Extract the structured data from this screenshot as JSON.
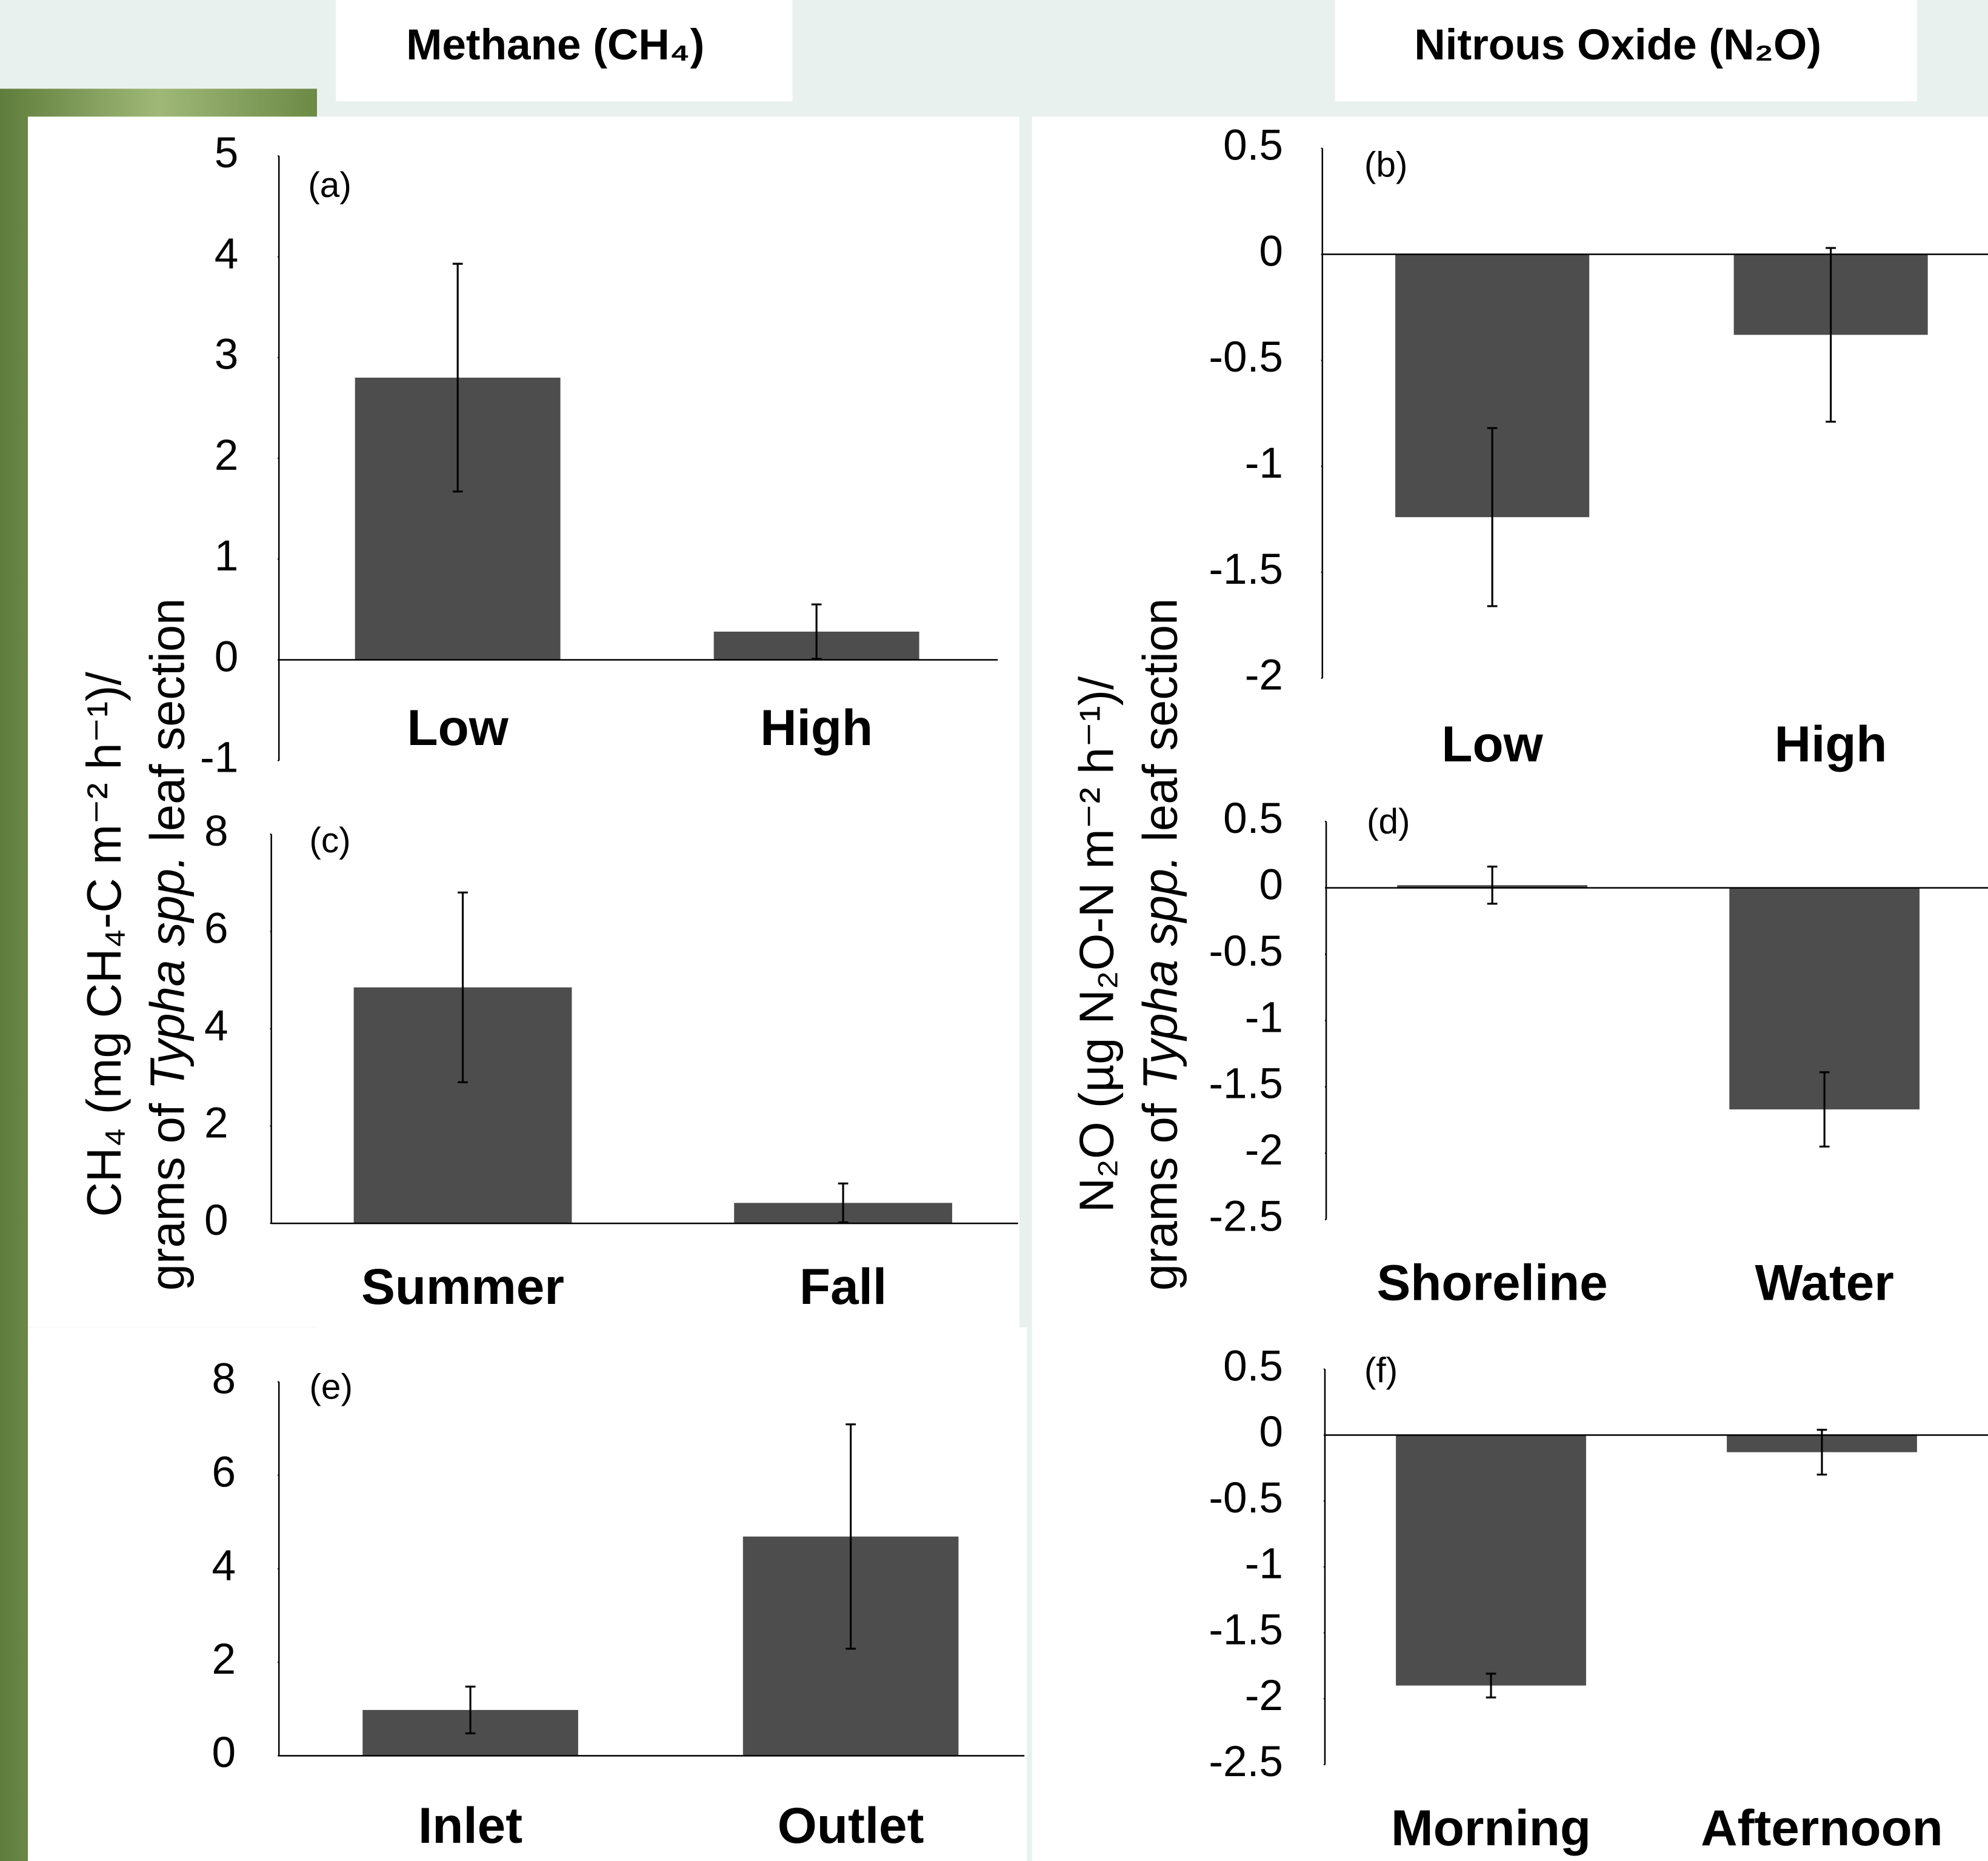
{
  "headers": [
    "Methane (CH₄)",
    "Nitrous Oxide (N₂O)"
  ],
  "y_labels": [
    {
      "line1": "CH₄ (mg CH₄-C m⁻² h⁻¹)/",
      "line2": [
        "grams of ",
        "Typha spp.",
        " leaf section"
      ]
    },
    {
      "line1": "N₂O (µg N₂O-N m⁻² h⁻¹)/",
      "line2": [
        "grams of ",
        "Typha spp.",
        " leaf section"
      ]
    }
  ],
  "chart_data": [
    {
      "type": "bar",
      "annotation": "(a)",
      "categories": [
        "Low",
        "High"
      ],
      "values": [
        2.8,
        0.28
      ],
      "errors": [
        1.13,
        0.27
      ],
      "color": "#4d4d4d",
      "ylim": [
        -1,
        5
      ],
      "yticks": [
        -1,
        0,
        1,
        2,
        3,
        4,
        5
      ]
    },
    {
      "type": "bar",
      "annotation": "(b)",
      "categories": [
        "Low",
        "High"
      ],
      "values": [
        -1.24,
        -0.38
      ],
      "errors": [
        0.42,
        0.41
      ],
      "color": "#4d4d4d",
      "ylim": [
        -2,
        0.5
      ],
      "yticks": [
        -2,
        -1.5,
        -1,
        -0.5,
        0,
        0.5
      ]
    },
    {
      "type": "bar",
      "annotation": "(c)",
      "categories": [
        "Summer",
        "Fall"
      ],
      "values": [
        4.85,
        0.42
      ],
      "errors": [
        1.95,
        0.4
      ],
      "color": "#4d4d4d",
      "ylim": [
        0,
        8
      ],
      "yticks": [
        0,
        2,
        4,
        6,
        8
      ]
    },
    {
      "type": "bar",
      "annotation": "(d)",
      "categories": [
        "Shoreline",
        "Water"
      ],
      "values": [
        0.02,
        -1.67
      ],
      "errors": [
        0.14,
        0.28
      ],
      "color": "#4d4d4d",
      "ylim": [
        -2.5,
        0.5
      ],
      "yticks": [
        -2.5,
        -2,
        -1.5,
        -1,
        -0.5,
        0,
        0.5
      ]
    },
    {
      "type": "bar",
      "annotation": "(e)",
      "categories": [
        "Inlet",
        "Outlet"
      ],
      "values": [
        0.98,
        4.69
      ],
      "errors": [
        0.5,
        2.4
      ],
      "color": "#4d4d4d",
      "ylim": [
        0,
        8
      ],
      "yticks": [
        0,
        2,
        4,
        6,
        8
      ]
    },
    {
      "type": "bar",
      "annotation": "(f)",
      "categories": [
        "Morning",
        "Afternoon"
      ],
      "values": [
        -1.9,
        -0.13
      ],
      "errors": [
        0.09,
        0.17
      ],
      "color": "#4d4d4d",
      "ylim": [
        -2.5,
        0.5
      ],
      "yticks": [
        -2.5,
        -2,
        -1.5,
        -1,
        -0.5,
        0,
        0.5
      ]
    }
  ]
}
